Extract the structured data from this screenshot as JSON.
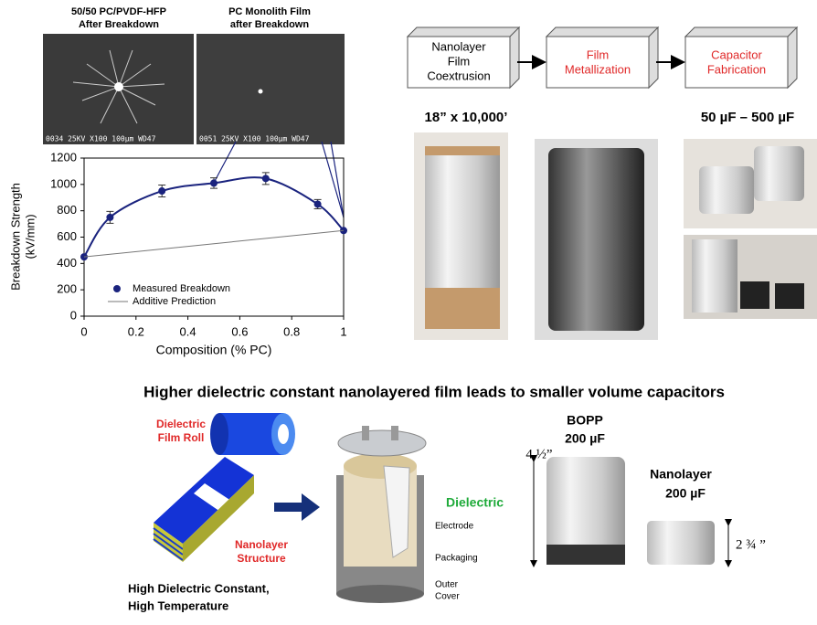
{
  "chart_data": {
    "type": "line",
    "xlabel": "Composition (% PC)",
    "ylabel": [
      "Breakdown Strength",
      "(kV/mm)"
    ],
    "xlim": [
      0,
      1
    ],
    "xticks": [
      0,
      0.2,
      0.4,
      0.6,
      0.8,
      1
    ],
    "ylim": [
      0,
      1200
    ],
    "yticks": [
      0,
      200,
      400,
      600,
      800,
      1000,
      1200
    ],
    "series": [
      {
        "name": "Measured Breakdown",
        "color": "#1a237e",
        "x": [
          0,
          0.1,
          0.3,
          0.5,
          0.7,
          0.9,
          1
        ],
        "values": [
          450,
          750,
          950,
          1010,
          1045,
          850,
          650
        ],
        "errors": [
          null,
          45,
          45,
          40,
          45,
          35,
          null
        ]
      },
      {
        "name": "Additive Prediction",
        "color": "#777777",
        "x": [
          0,
          1
        ],
        "values": [
          450,
          650
        ]
      }
    ]
  },
  "micrographs": [
    {
      "title": [
        "50/50 PC/PVDF-HFP",
        "After Breakdown"
      ],
      "info": "0034  25KV    X100  100µm WD47"
    },
    {
      "title": [
        "PC Monolith Film",
        "after Breakdown"
      ],
      "info": "0051  25KV    X100  100µm WD47"
    }
  ],
  "process": [
    [
      "Nanolayer",
      "Film",
      "Coextrusion"
    ],
    [
      "Film",
      "Metallization"
    ],
    [
      "Capacitor",
      "Fabrication"
    ]
  ],
  "roll_label": "18” x 10,000’",
  "capacitor_range": "50 µF – 500 µF",
  "headline": "Higher dielectric constant nanolayered film leads to smaller volume capacitors",
  "film": {
    "roll": [
      "Dielectric",
      "Film Roll"
    ],
    "structure": [
      "Nanolayer",
      "Structure"
    ],
    "caption": [
      "High Dielectric Constant,",
      "High Temperature"
    ]
  },
  "capacitor_parts": {
    "dielectric": "Dielectric",
    "electrode": "Electrode",
    "packaging": "Packaging",
    "cover": [
      "Outer",
      "Cover"
    ]
  },
  "comparison": {
    "bopp": [
      "BOPP",
      "200 µF"
    ],
    "bopp_height": "4 ½”",
    "nano": [
      "Nanolayer",
      "200 µF"
    ],
    "nano_height": "2 ¾ ”"
  }
}
